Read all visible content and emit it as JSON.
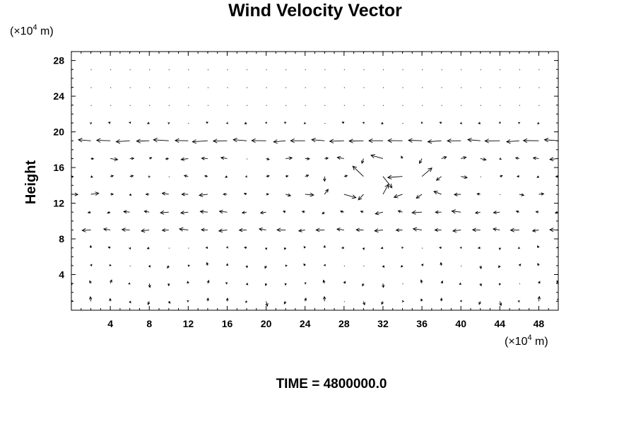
{
  "chart_data": {
    "type": "quiver",
    "title": "Wind Velocity Vector",
    "ylabel": "Height",
    "xlabel": "",
    "x_unit": {
      "prefix": "(×10",
      "exp": "4",
      "suffix": "  m)"
    },
    "y_unit": {
      "prefix": "(×10",
      "exp": "4",
      "suffix": "  m)"
    },
    "xlim": [
      0,
      50
    ],
    "ylim": [
      0,
      29
    ],
    "x_ticks": [
      4,
      8,
      12,
      16,
      20,
      24,
      28,
      32,
      36,
      40,
      44,
      48
    ],
    "y_ticks": [
      4,
      8,
      12,
      16,
      20,
      24,
      28
    ],
    "grid_spacing": {
      "x": 2,
      "y": 2
    },
    "grid_start": {
      "x": 0,
      "y": 1
    },
    "grid": false,
    "footer": "TIME = 4800000.0"
  }
}
